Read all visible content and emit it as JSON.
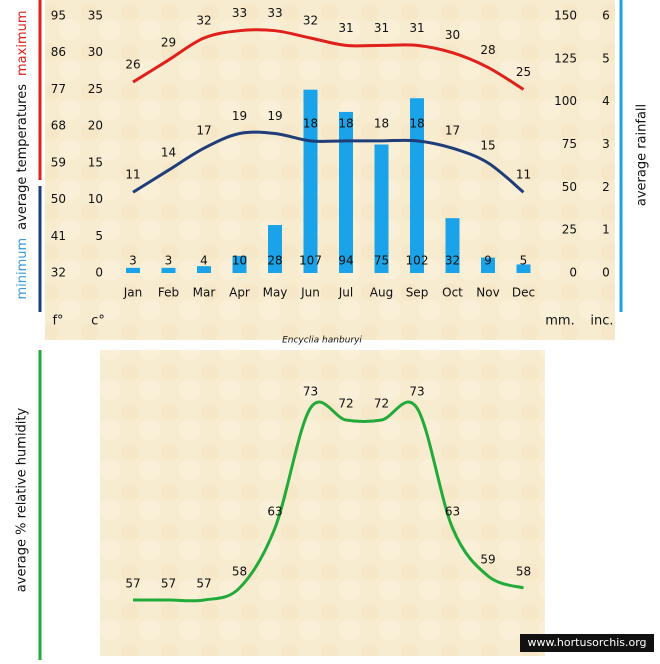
{
  "chart_data": [
    {
      "type": "combo",
      "title": "Encyclia hanburyi",
      "categories": [
        "Jan",
        "Feb",
        "Mar",
        "Apr",
        "May",
        "Jun",
        "Jul",
        "Aug",
        "Sep",
        "Oct",
        "Nov",
        "Dec"
      ],
      "series": [
        {
          "name": "maximum",
          "color": "#e0201b",
          "kind": "line",
          "values": [
            26,
            29,
            32,
            33,
            33,
            32,
            31,
            31,
            31,
            30,
            28,
            25
          ]
        },
        {
          "name": "minimum",
          "color": "#1f3d78",
          "kind": "line",
          "values": [
            11,
            14,
            17,
            19,
            19,
            18,
            18,
            18,
            18,
            17,
            15,
            11
          ]
        },
        {
          "name": "average rainfall",
          "color": "#1aa3e8",
          "kind": "bar",
          "axis": "y2",
          "values": [
            3,
            3,
            4,
            10,
            28,
            107,
            94,
            75,
            102,
            32,
            9,
            5
          ]
        }
      ],
      "y_label": "average  temperatures",
      "y_label_max": "maximum",
      "y_label_min": "minimum",
      "y_unit": "c°",
      "f_unit": "f°",
      "y2_unit": "mm.",
      "y3_unit": "inc.",
      "ylim": [
        0,
        35
      ],
      "yticks": [
        0,
        5,
        10,
        15,
        20,
        25,
        30,
        35
      ],
      "fticks": [
        {
          "value": 0,
          "label": "32"
        },
        {
          "value": 5,
          "label": "41"
        },
        {
          "value": 10,
          "label": "50"
        },
        {
          "value": 15,
          "label": "59"
        },
        {
          "value": 20,
          "label": "68"
        },
        {
          "value": 25,
          "label": "77"
        },
        {
          "value": 30,
          "label": "86"
        },
        {
          "value": 35,
          "label": "95"
        }
      ],
      "y2lim": [
        0,
        150
      ],
      "y2ticks": [
        0,
        25,
        50,
        75,
        100,
        125,
        150
      ],
      "y3ticks": [
        0,
        {
          "value": 25,
          "label": "1"
        },
        {
          "value": 50,
          "label": "2"
        },
        {
          "value": 75,
          "label": "3"
        },
        {
          "value": 100,
          "label": "4"
        },
        {
          "value": 125,
          "label": "5"
        },
        {
          "value": 150,
          "label": "6"
        }
      ]
    },
    {
      "type": "line",
      "y_label": "average %  relative humidity",
      "series": [
        {
          "name": "relative humidity",
          "color": "#22aa3a",
          "values": [
            57,
            57,
            57,
            58,
            63,
            73,
            72,
            72,
            73,
            63,
            59,
            58
          ]
        }
      ]
    }
  ],
  "footer": "www.hortusorchis.org"
}
